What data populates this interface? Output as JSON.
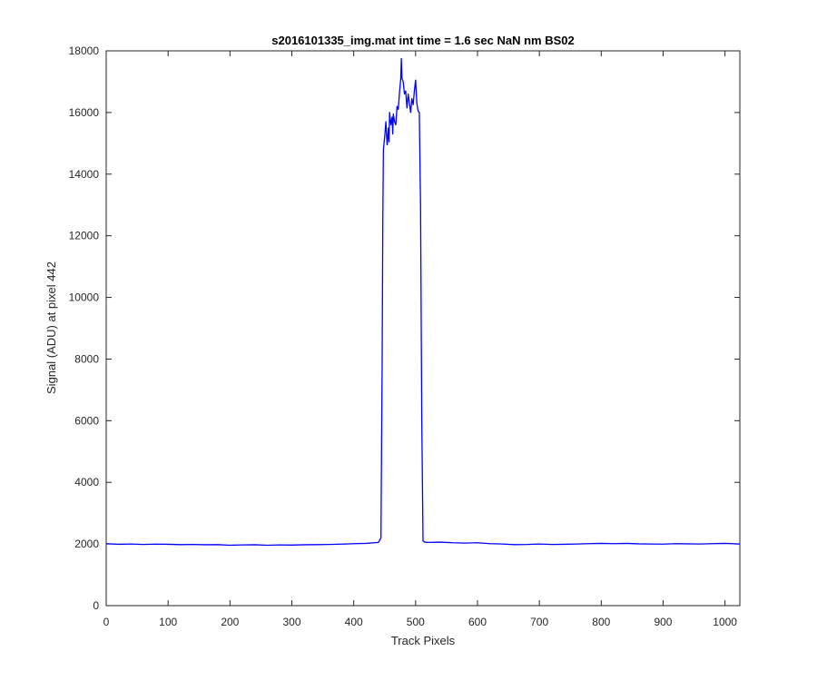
{
  "colors": {
    "line": "#0000ff",
    "axis": "#262626",
    "background": "#ffffff"
  },
  "chart_data": {
    "type": "line",
    "title": "s2016101335_img.mat int time = 1.6 sec  NaN nm BS02",
    "xlabel": "Track Pixels",
    "ylabel": "Signal (ADU) at pixel 442",
    "xlim": [
      0,
      1024
    ],
    "ylim": [
      0,
      18000
    ],
    "grid": false,
    "xticks": [
      0,
      100,
      200,
      300,
      400,
      500,
      600,
      700,
      800,
      900,
      1000
    ],
    "yticks": [
      0,
      2000,
      4000,
      6000,
      8000,
      10000,
      12000,
      14000,
      16000,
      18000
    ],
    "series": [
      {
        "color": "#0000ff",
        "x": [
          0,
          20,
          40,
          60,
          80,
          100,
          120,
          140,
          160,
          180,
          200,
          220,
          240,
          260,
          280,
          300,
          320,
          340,
          360,
          380,
          400,
          420,
          440,
          444,
          446,
          447,
          448,
          450,
          452,
          453,
          454,
          456,
          457,
          458,
          460,
          462,
          463,
          464,
          466,
          468,
          470,
          472,
          474,
          476,
          477,
          478,
          480,
          482,
          484,
          486,
          488,
          490,
          492,
          494,
          496,
          498,
          500,
          502,
          504,
          506,
          508,
          510,
          512,
          515,
          520,
          540,
          560,
          580,
          600,
          620,
          640,
          660,
          680,
          700,
          720,
          740,
          760,
          780,
          800,
          820,
          840,
          860,
          880,
          900,
          920,
          940,
          960,
          980,
          1000,
          1024
        ],
        "y": [
          2010,
          1990,
          2000,
          1985,
          1995,
          1990,
          1980,
          1985,
          1975,
          1980,
          1960,
          1970,
          1975,
          1960,
          1970,
          1965,
          1975,
          1980,
          1985,
          1995,
          2010,
          2020,
          2050,
          2200,
          8000,
          12500,
          14800,
          15200,
          15700,
          15300,
          14950,
          15500,
          15050,
          16000,
          15600,
          15850,
          15300,
          15950,
          15700,
          15600,
          16200,
          16100,
          16650,
          17100,
          17750,
          17100,
          17000,
          16600,
          16700,
          16150,
          16600,
          16300,
          16000,
          16450,
          16250,
          16700,
          17050,
          16300,
          16050,
          16000,
          13000,
          6000,
          2100,
          2060,
          2050,
          2060,
          2040,
          2030,
          2040,
          2010,
          2000,
          1980,
          1985,
          2000,
          1985,
          1990,
          2000,
          2010,
          2020,
          2010,
          2020,
          2005,
          2000,
          1995,
          2010,
          2005,
          2000,
          2010,
          2020,
          2000
        ]
      }
    ]
  }
}
